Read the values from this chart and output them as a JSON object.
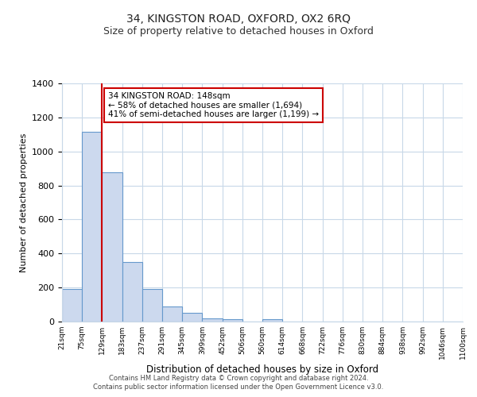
{
  "title": "34, KINGSTON ROAD, OXFORD, OX2 6RQ",
  "subtitle": "Size of property relative to detached houses in Oxford",
  "bar_values": [
    193,
    1115,
    878,
    352,
    193,
    90,
    52,
    20,
    13,
    0,
    13,
    0,
    0,
    0,
    0,
    0,
    0,
    0,
    0,
    0
  ],
  "bin_labels": [
    "21sqm",
    "75sqm",
    "129sqm",
    "183sqm",
    "237sqm",
    "291sqm",
    "345sqm",
    "399sqm",
    "452sqm",
    "506sqm",
    "560sqm",
    "614sqm",
    "668sqm",
    "722sqm",
    "776sqm",
    "830sqm",
    "884sqm",
    "938sqm",
    "992sqm",
    "1046sqm",
    "1100sqm"
  ],
  "bar_color": "#ccd9ee",
  "bar_edge_color": "#6699cc",
  "property_line_x": 2.0,
  "property_line_color": "#cc0000",
  "annotation_title": "34 KINGSTON ROAD: 148sqm",
  "annotation_line1": "← 58% of detached houses are smaller (1,694)",
  "annotation_line2": "41% of semi-detached houses are larger (1,199) →",
  "annotation_box_color": "#ffffff",
  "annotation_box_edge": "#cc0000",
  "xlabel": "Distribution of detached houses by size in Oxford",
  "ylabel": "Number of detached properties",
  "ylim": [
    0,
    1400
  ],
  "yticks": [
    0,
    200,
    400,
    600,
    800,
    1000,
    1200,
    1400
  ],
  "footer1": "Contains HM Land Registry data © Crown copyright and database right 2024.",
  "footer2": "Contains public sector information licensed under the Open Government Licence v3.0.",
  "bg_color": "#ffffff",
  "grid_color": "#c8d8e8",
  "title_fontsize": 10,
  "subtitle_fontsize": 9
}
